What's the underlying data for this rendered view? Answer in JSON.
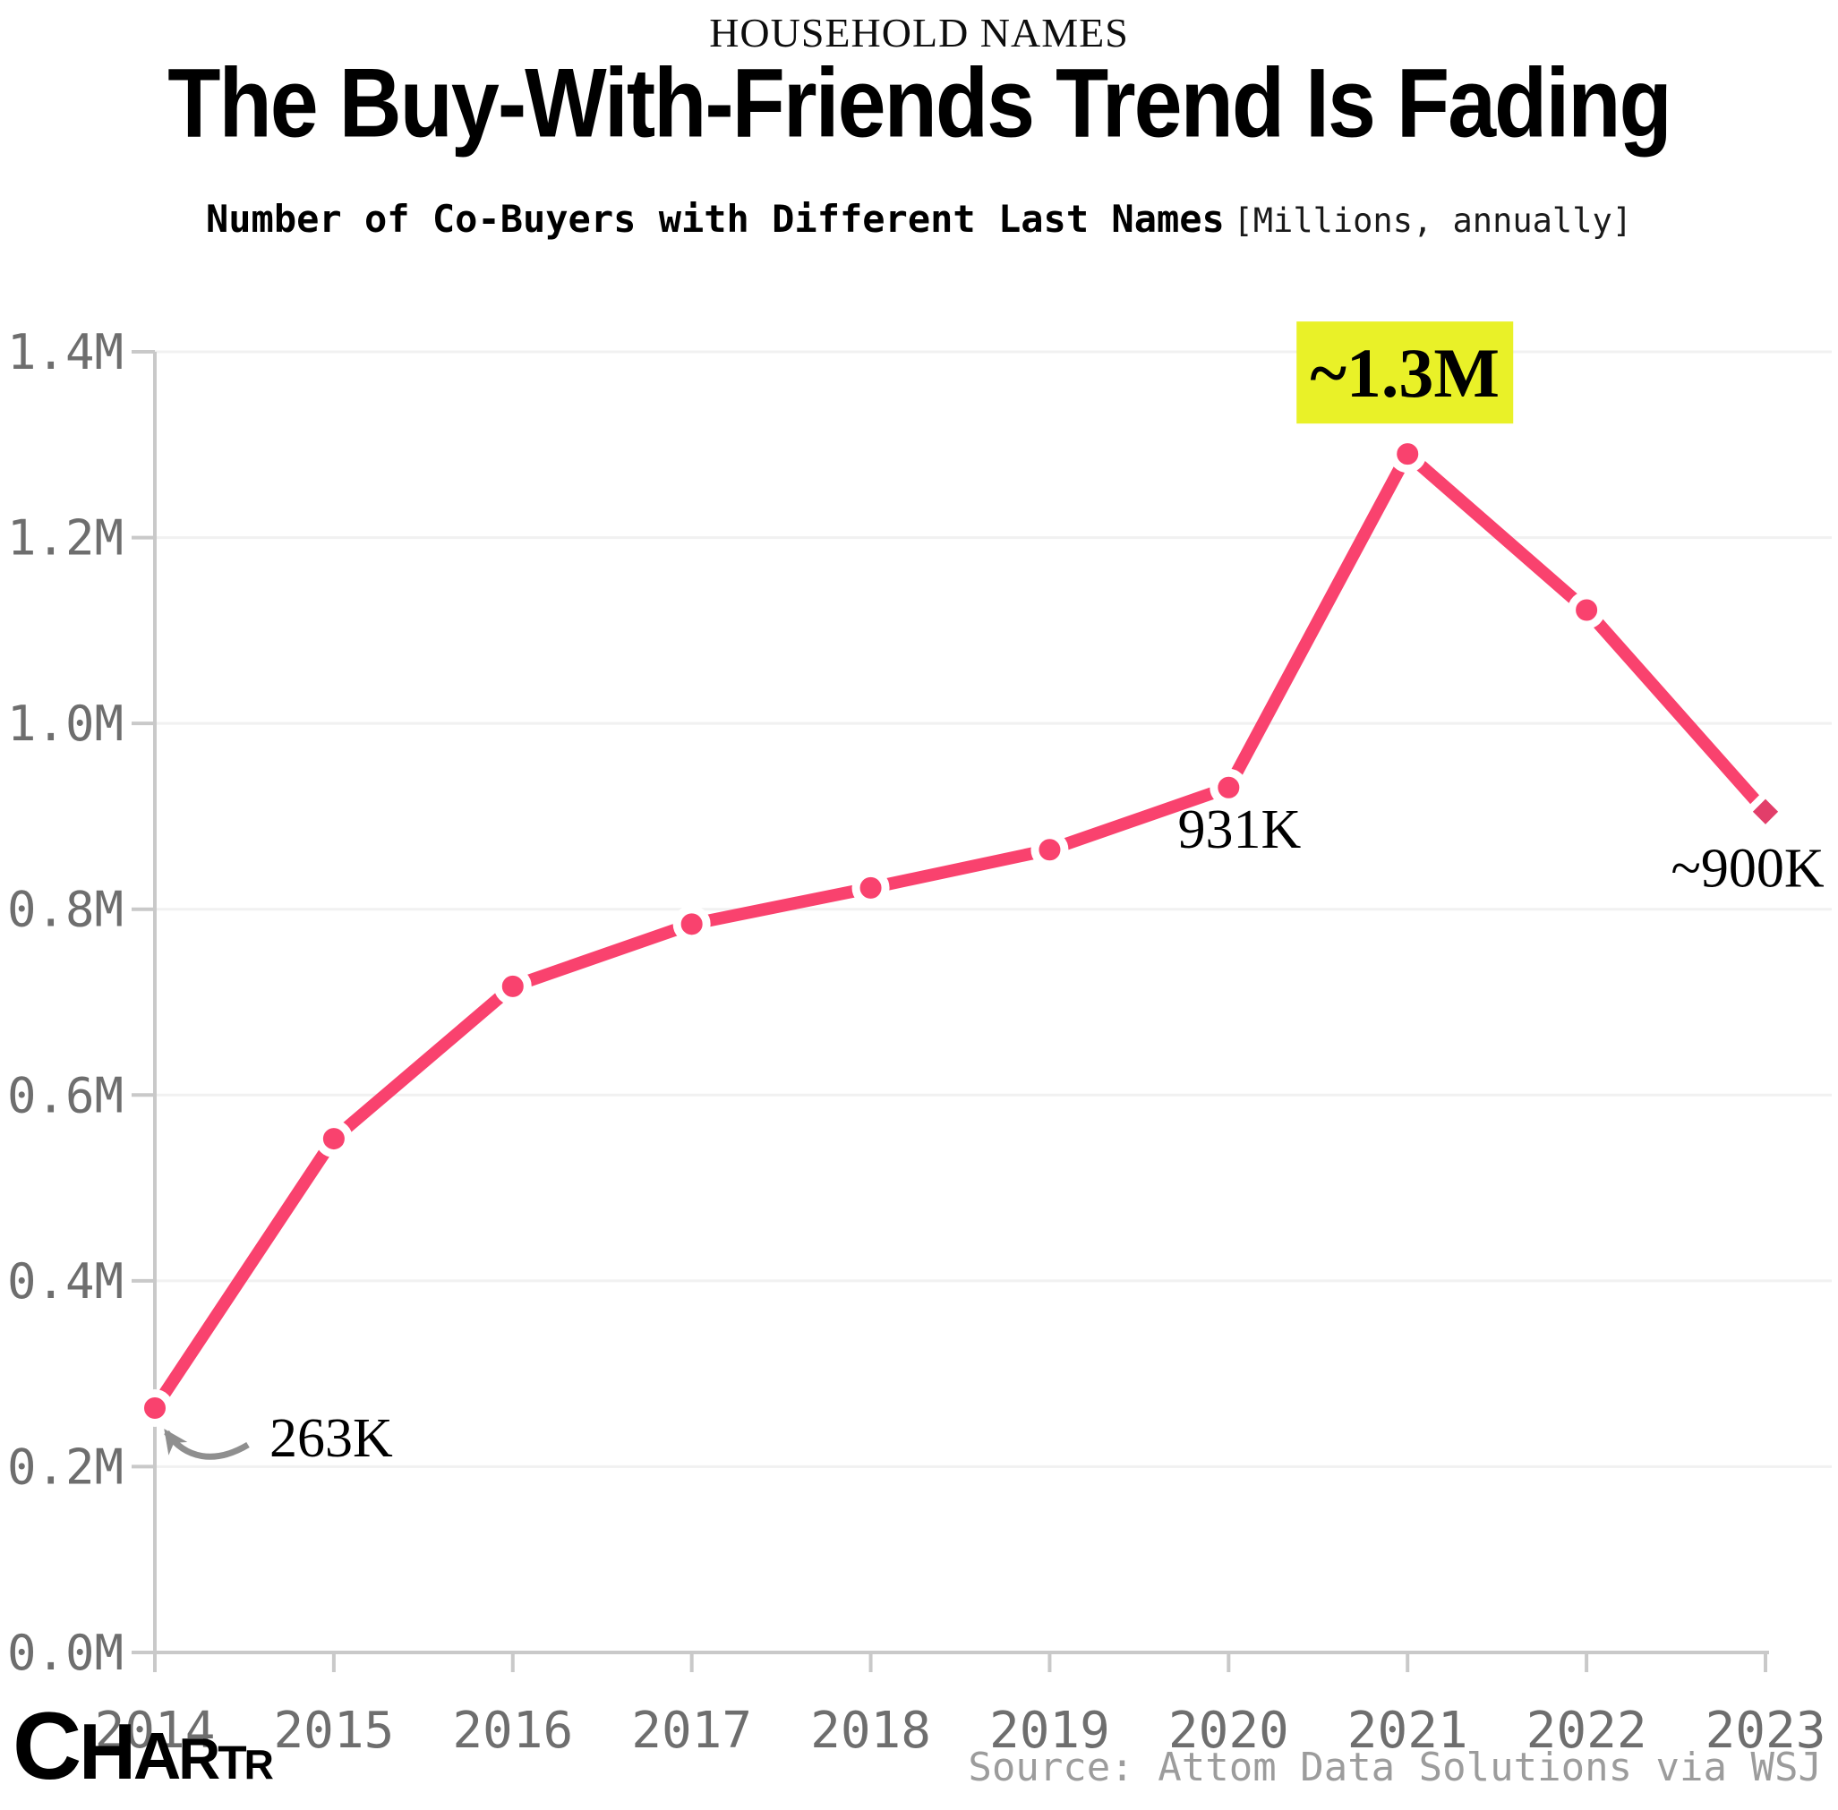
{
  "kicker": "HOUSEHOLD NAMES",
  "chart_data": {
    "type": "line",
    "title": "The Buy-With-Friends Trend Is Fading",
    "subtitle": "Number of Co-Buyers with Different Last Names",
    "subtitle_unit": "[Millions, annually]",
    "x": [
      2014,
      2015,
      2016,
      2017,
      2018,
      2019,
      2020,
      2021,
      2022,
      2023
    ],
    "x_labels": [
      "2014",
      "2015",
      "2016",
      "2017",
      "2018",
      "2019",
      "2020",
      "2021",
      "2022",
      "2023"
    ],
    "values_thousands": [
      263,
      553,
      717,
      784,
      823,
      864,
      931,
      1290,
      1122,
      905
    ],
    "ylim_thousands": [
      0,
      1400
    ],
    "y_ticks": [
      {
        "value_thousands": 0,
        "label": "0.0M"
      },
      {
        "value_thousands": 200,
        "label": "0.2M"
      },
      {
        "value_thousands": 400,
        "label": "0.4M"
      },
      {
        "value_thousands": 600,
        "label": "0.6M"
      },
      {
        "value_thousands": 800,
        "label": "0.8M"
      },
      {
        "value_thousands": 1000,
        "label": "1.0M"
      },
      {
        "value_thousands": 1200,
        "label": "1.2M"
      },
      {
        "value_thousands": 1400,
        "label": "1.4M"
      }
    ],
    "grid": true,
    "legend": false,
    "marker_style": "circle",
    "last_marker_style": "diamond",
    "annotations": [
      {
        "year": 2014,
        "label": "263K",
        "style": "arrow"
      },
      {
        "year": 2020,
        "label": "931K",
        "style": "below"
      },
      {
        "year": 2021,
        "label": "~1.3M",
        "style": "highlight"
      },
      {
        "year": 2023,
        "label": "~900K",
        "style": "below-left"
      }
    ],
    "colors": {
      "line": "#F9426E",
      "marker": "#F9426E",
      "end_marker": "#E23E6A",
      "grid": "#F1F1F1",
      "axis": "#C9C9C9",
      "tick_label": "#6E6E6E",
      "annotation_text": "#000000",
      "highlight": "#E9F128",
      "arrow": "#8F8F8F"
    }
  },
  "footer": {
    "logo": "CHARTR",
    "source": "Source: Attom Data Solutions via WSJ"
  }
}
